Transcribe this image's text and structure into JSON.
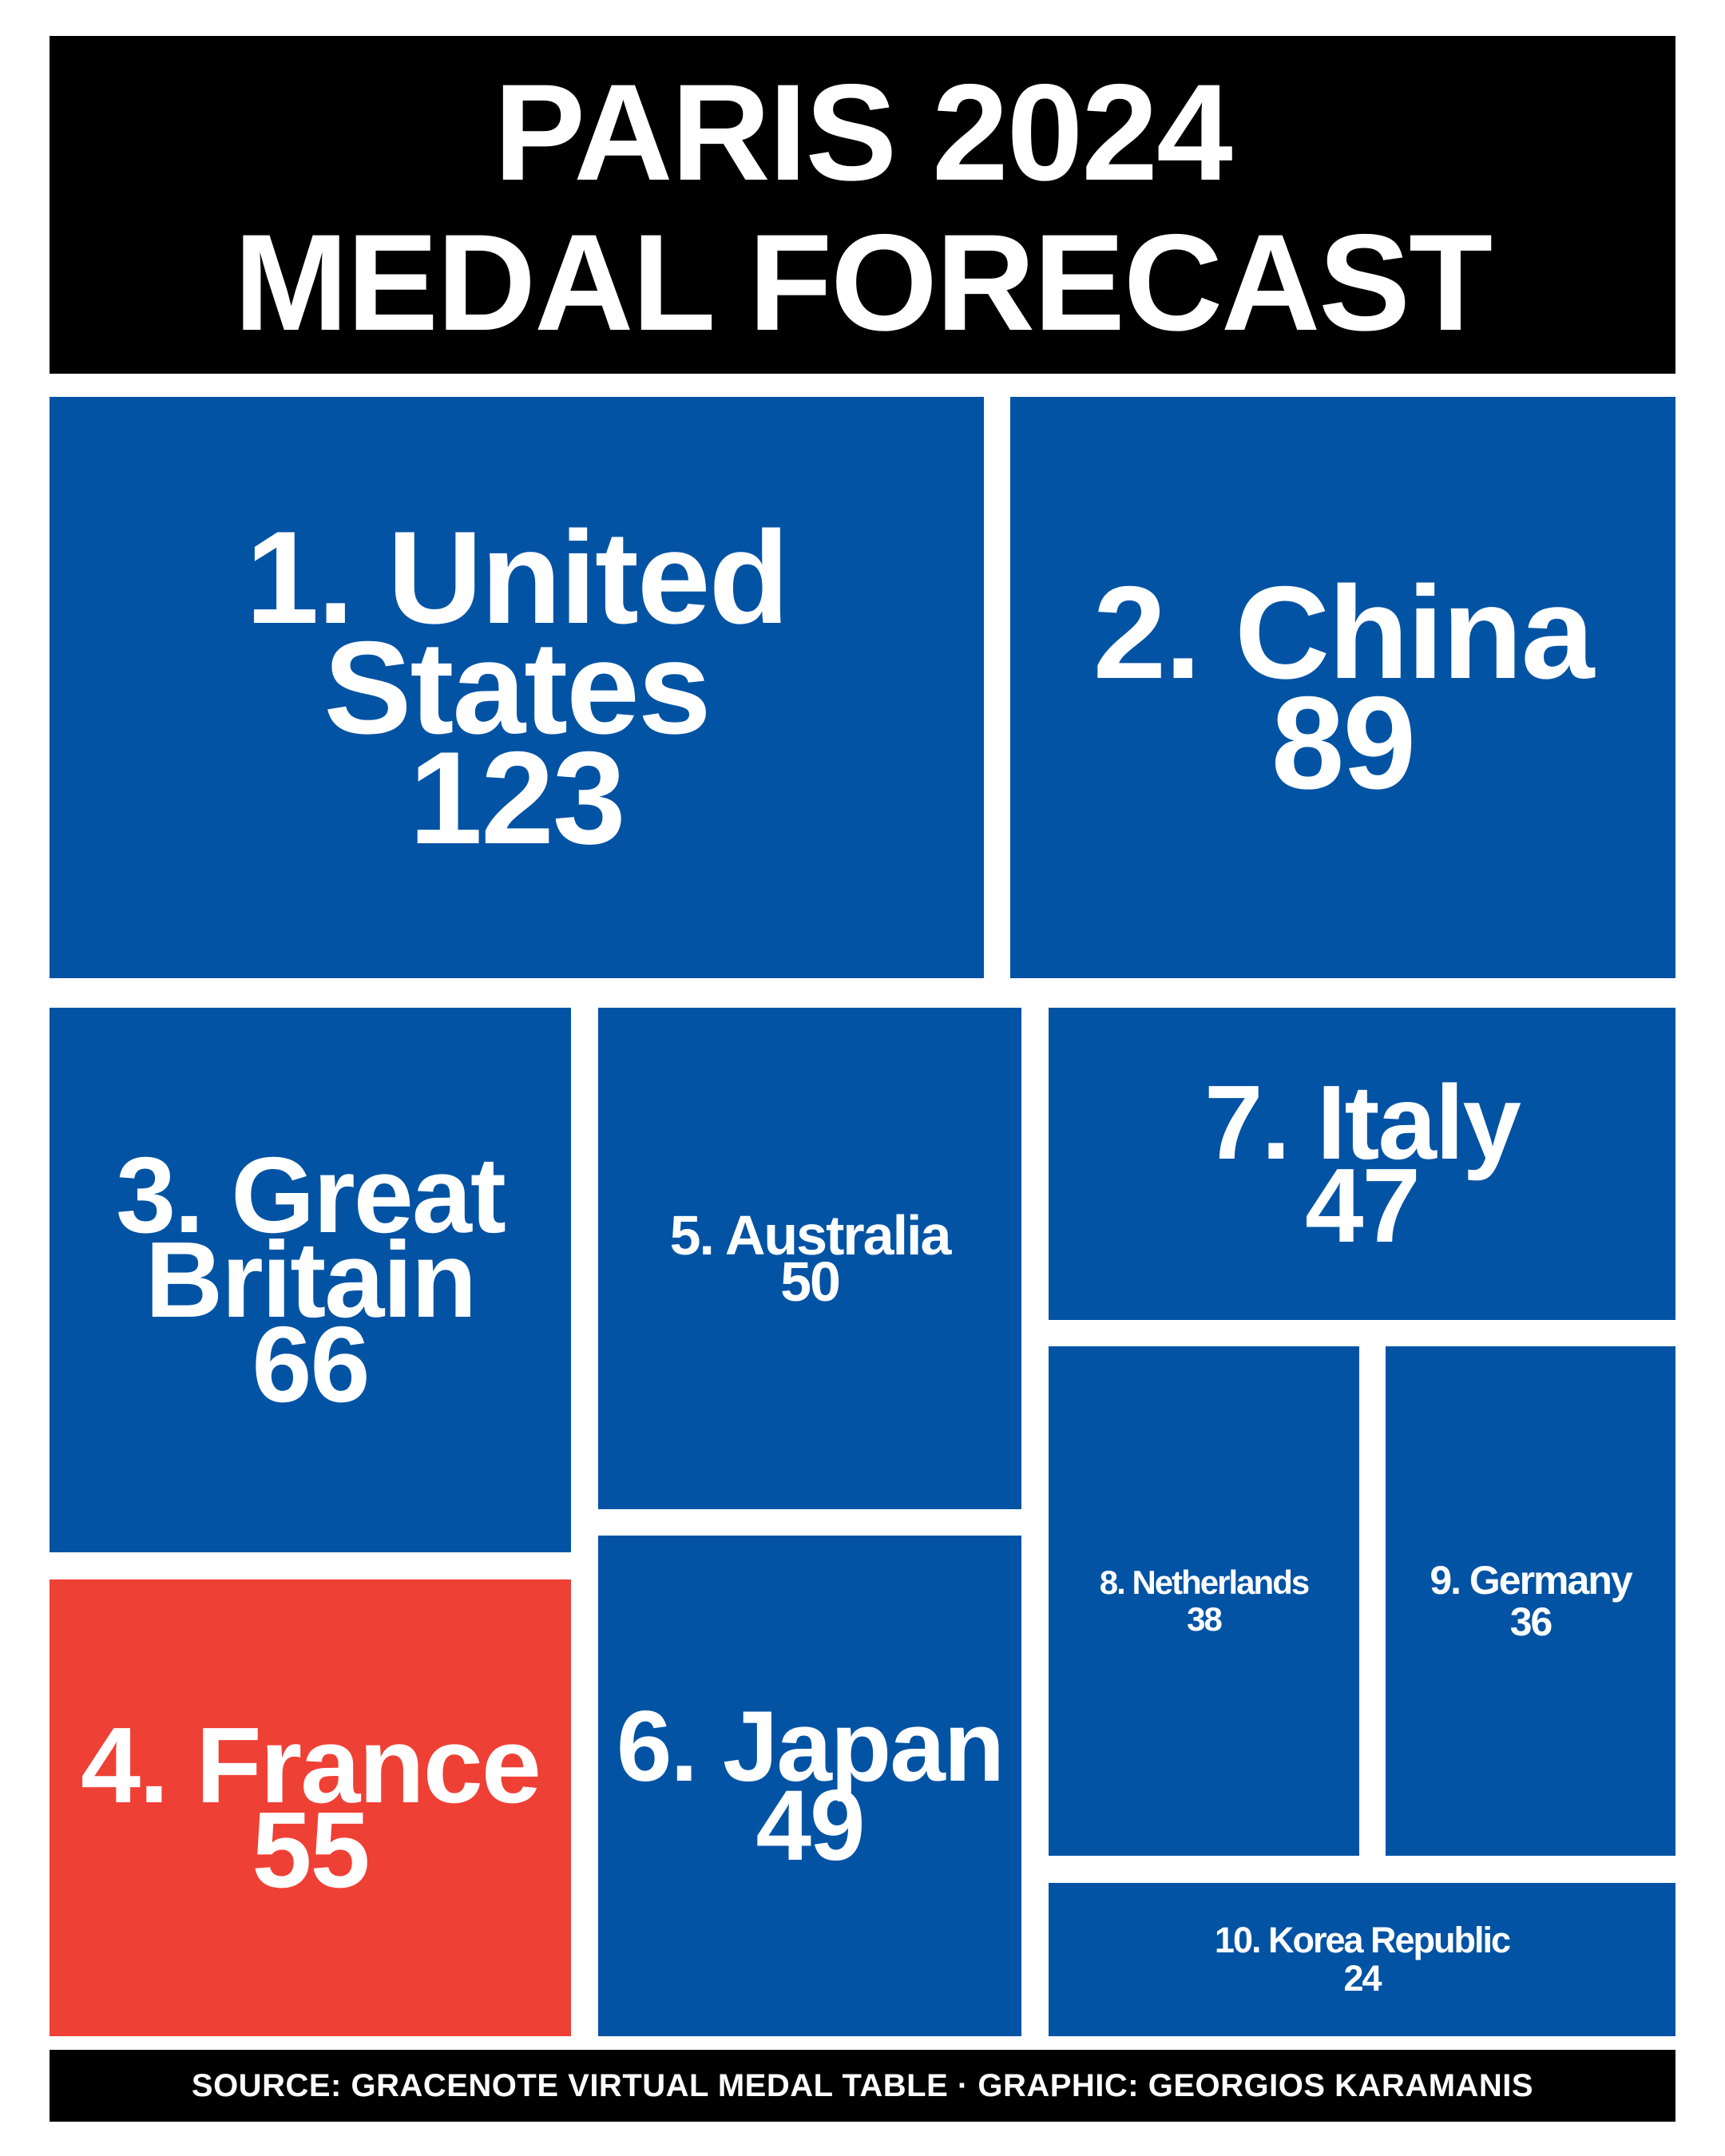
{
  "header": {
    "title_line1": "PARIS 2024",
    "title_line2": "MEDAL FORECAST"
  },
  "footer": {
    "text": "SOURCE: GRACENOTE VIRTUAL MEDAL TABLE · GRAPHIC: GEORGIOS KARAMANIS"
  },
  "colors": {
    "default": "#0353A4",
    "highlight": "#EF4035",
    "header_bg": "#000000",
    "text": "#FFFFFF"
  },
  "chart_data": {
    "type": "treemap",
    "title": "PARIS 2024 MEDAL FORECAST",
    "value_unit": "medals",
    "highlighted": "France",
    "items": [
      {
        "rank": 1,
        "country": "United States",
        "label": "1. United States",
        "medals": 123
      },
      {
        "rank": 2,
        "country": "China",
        "label": "2. China",
        "medals": 89
      },
      {
        "rank": 3,
        "country": "Great Britain",
        "label": "3. Great Britain",
        "medals": 66
      },
      {
        "rank": 4,
        "country": "France",
        "label": "4. France",
        "medals": 55
      },
      {
        "rank": 5,
        "country": "Australia",
        "label": "5. Australia",
        "medals": 50
      },
      {
        "rank": 6,
        "country": "Japan",
        "label": "6. Japan",
        "medals": 49
      },
      {
        "rank": 7,
        "country": "Italy",
        "label": "7. Italy",
        "medals": 47
      },
      {
        "rank": 8,
        "country": "Netherlands",
        "label": "8. Netherlands",
        "medals": 38
      },
      {
        "rank": 9,
        "country": "Germany",
        "label": "9. Germany",
        "medals": 36
      },
      {
        "rank": 10,
        "country": "Korea Republic",
        "label": "10. Korea Republic",
        "medals": 24
      }
    ]
  }
}
